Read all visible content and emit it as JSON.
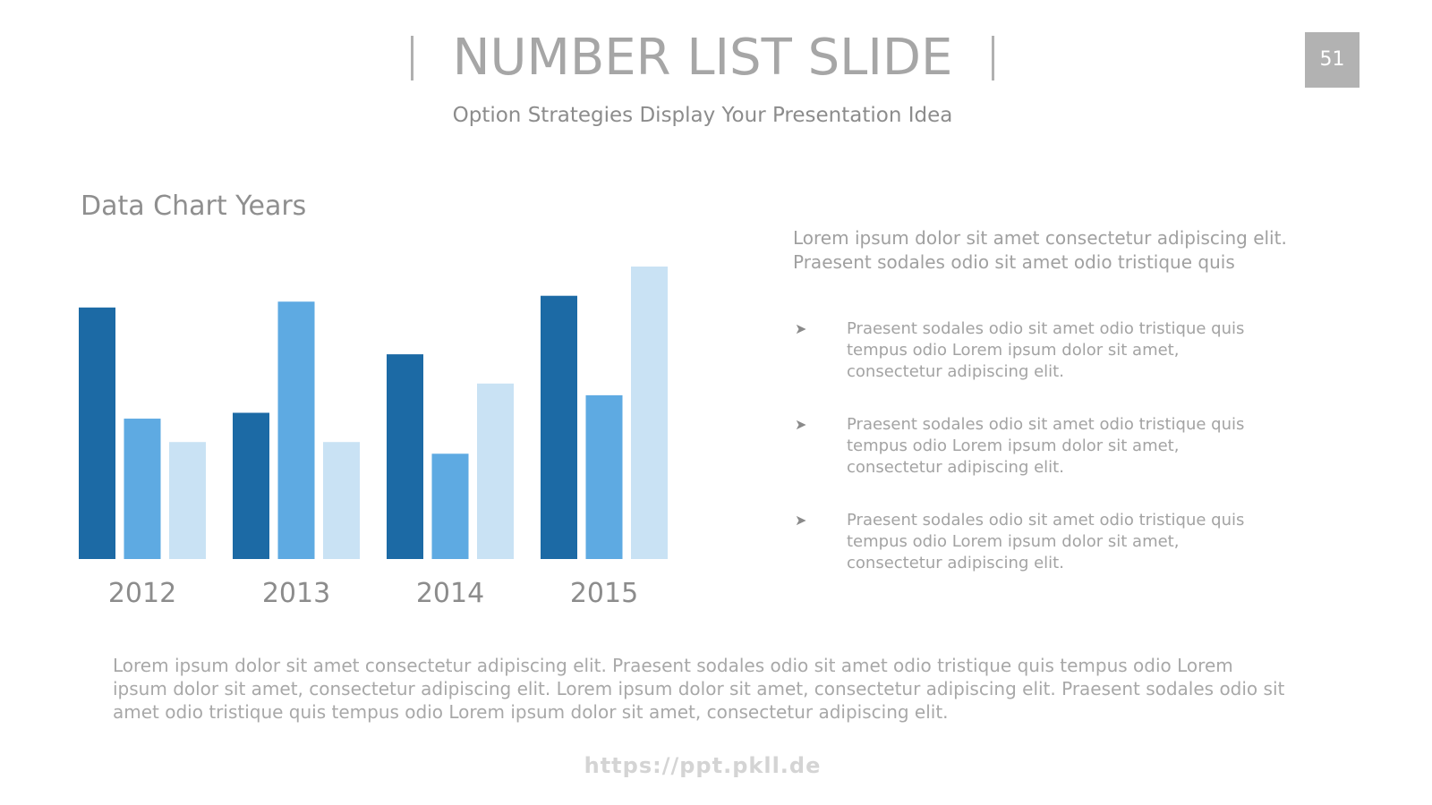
{
  "slide": {
    "number": "51",
    "title": "NUMBER LIST SLIDE",
    "subtitle": "Option Strategies Display Your Presentation Idea",
    "chart_heading": "Data Chart Years",
    "intro": "Lorem ipsum dolor sit amet consectetur adipiscing elit. Praesent sodales odio sit amet odio tristique quis",
    "bullets": [
      "Praesent sodales odio sit amet odio tristique quis tempus odio Lorem ipsum dolor sit amet, consectetur adipiscing elit.",
      "Praesent sodales odio sit amet odio tristique quis tempus odio Lorem ipsum dolor sit amet, consectetur adipiscing elit.",
      "Praesent sodales odio sit amet odio tristique quis tempus odio Lorem ipsum dolor sit amet, consectetur adipiscing elit."
    ],
    "bullet_icon": "arrowhead-icon",
    "footer_text": "Lorem ipsum dolor sit amet consectetur adipiscing elit. Praesent sodales odio sit amet odio tristique quis tempus odio Lorem ipsum dolor sit amet, consectetur adipiscing elit. Lorem ipsum dolor sit amet, consectetur adipiscing elit. Praesent sodales odio sit amet odio tristique quis tempus odio Lorem ipsum dolor sit amet, consectetur adipiscing elit.",
    "footer_url": "https://ppt.pkll.de"
  },
  "colors": {
    "series1": "#1c6aa5",
    "series2": "#5eaae2",
    "series3": "#c9e2f4",
    "badge": "#b2b2b2"
  },
  "chart_data": {
    "type": "bar",
    "categories": [
      "2012",
      "2013",
      "2014",
      "2015"
    ],
    "series": [
      {
        "values": [
          86,
          50,
          70,
          90
        ]
      },
      {
        "values": [
          48,
          88,
          36,
          56
        ]
      },
      {
        "values": [
          40,
          40,
          60,
          100
        ]
      }
    ],
    "ylim": [
      0,
      100
    ],
    "grid": false,
    "legend": "none"
  }
}
